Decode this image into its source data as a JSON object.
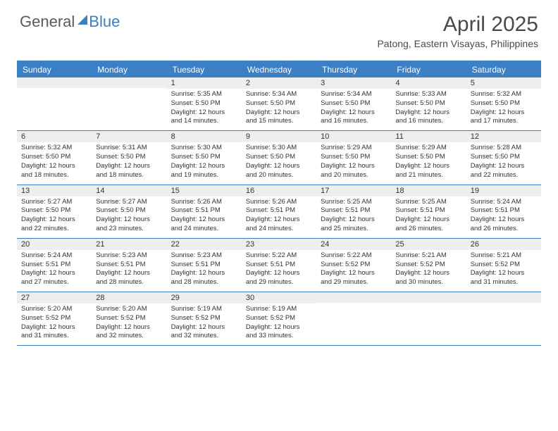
{
  "brand": {
    "part1": "General",
    "part2": "Blue"
  },
  "title": "April 2025",
  "location": "Patong, Eastern Visayas, Philippines",
  "colors": {
    "accent": "#3b7fc4",
    "header_text": "#4a4a4a",
    "daynum_bg": "#eeeeee",
    "text": "#333333",
    "white": "#ffffff"
  },
  "weekdays": [
    "Sunday",
    "Monday",
    "Tuesday",
    "Wednesday",
    "Thursday",
    "Friday",
    "Saturday"
  ],
  "weeks": [
    [
      {
        "n": "",
        "sr": "",
        "ss": "",
        "dl": ""
      },
      {
        "n": "",
        "sr": "",
        "ss": "",
        "dl": ""
      },
      {
        "n": "1",
        "sr": "5:35 AM",
        "ss": "5:50 PM",
        "dl": "12 hours and 14 minutes."
      },
      {
        "n": "2",
        "sr": "5:34 AM",
        "ss": "5:50 PM",
        "dl": "12 hours and 15 minutes."
      },
      {
        "n": "3",
        "sr": "5:34 AM",
        "ss": "5:50 PM",
        "dl": "12 hours and 16 minutes."
      },
      {
        "n": "4",
        "sr": "5:33 AM",
        "ss": "5:50 PM",
        "dl": "12 hours and 16 minutes."
      },
      {
        "n": "5",
        "sr": "5:32 AM",
        "ss": "5:50 PM",
        "dl": "12 hours and 17 minutes."
      }
    ],
    [
      {
        "n": "6",
        "sr": "5:32 AM",
        "ss": "5:50 PM",
        "dl": "12 hours and 18 minutes."
      },
      {
        "n": "7",
        "sr": "5:31 AM",
        "ss": "5:50 PM",
        "dl": "12 hours and 18 minutes."
      },
      {
        "n": "8",
        "sr": "5:30 AM",
        "ss": "5:50 PM",
        "dl": "12 hours and 19 minutes."
      },
      {
        "n": "9",
        "sr": "5:30 AM",
        "ss": "5:50 PM",
        "dl": "12 hours and 20 minutes."
      },
      {
        "n": "10",
        "sr": "5:29 AM",
        "ss": "5:50 PM",
        "dl": "12 hours and 20 minutes."
      },
      {
        "n": "11",
        "sr": "5:29 AM",
        "ss": "5:50 PM",
        "dl": "12 hours and 21 minutes."
      },
      {
        "n": "12",
        "sr": "5:28 AM",
        "ss": "5:50 PM",
        "dl": "12 hours and 22 minutes."
      }
    ],
    [
      {
        "n": "13",
        "sr": "5:27 AM",
        "ss": "5:50 PM",
        "dl": "12 hours and 22 minutes."
      },
      {
        "n": "14",
        "sr": "5:27 AM",
        "ss": "5:50 PM",
        "dl": "12 hours and 23 minutes."
      },
      {
        "n": "15",
        "sr": "5:26 AM",
        "ss": "5:51 PM",
        "dl": "12 hours and 24 minutes."
      },
      {
        "n": "16",
        "sr": "5:26 AM",
        "ss": "5:51 PM",
        "dl": "12 hours and 24 minutes."
      },
      {
        "n": "17",
        "sr": "5:25 AM",
        "ss": "5:51 PM",
        "dl": "12 hours and 25 minutes."
      },
      {
        "n": "18",
        "sr": "5:25 AM",
        "ss": "5:51 PM",
        "dl": "12 hours and 26 minutes."
      },
      {
        "n": "19",
        "sr": "5:24 AM",
        "ss": "5:51 PM",
        "dl": "12 hours and 26 minutes."
      }
    ],
    [
      {
        "n": "20",
        "sr": "5:24 AM",
        "ss": "5:51 PM",
        "dl": "12 hours and 27 minutes."
      },
      {
        "n": "21",
        "sr": "5:23 AM",
        "ss": "5:51 PM",
        "dl": "12 hours and 28 minutes."
      },
      {
        "n": "22",
        "sr": "5:23 AM",
        "ss": "5:51 PM",
        "dl": "12 hours and 28 minutes."
      },
      {
        "n": "23",
        "sr": "5:22 AM",
        "ss": "5:51 PM",
        "dl": "12 hours and 29 minutes."
      },
      {
        "n": "24",
        "sr": "5:22 AM",
        "ss": "5:52 PM",
        "dl": "12 hours and 29 minutes."
      },
      {
        "n": "25",
        "sr": "5:21 AM",
        "ss": "5:52 PM",
        "dl": "12 hours and 30 minutes."
      },
      {
        "n": "26",
        "sr": "5:21 AM",
        "ss": "5:52 PM",
        "dl": "12 hours and 31 minutes."
      }
    ],
    [
      {
        "n": "27",
        "sr": "5:20 AM",
        "ss": "5:52 PM",
        "dl": "12 hours and 31 minutes."
      },
      {
        "n": "28",
        "sr": "5:20 AM",
        "ss": "5:52 PM",
        "dl": "12 hours and 32 minutes."
      },
      {
        "n": "29",
        "sr": "5:19 AM",
        "ss": "5:52 PM",
        "dl": "12 hours and 32 minutes."
      },
      {
        "n": "30",
        "sr": "5:19 AM",
        "ss": "5:52 PM",
        "dl": "12 hours and 33 minutes."
      },
      {
        "n": "",
        "sr": "",
        "ss": "",
        "dl": ""
      },
      {
        "n": "",
        "sr": "",
        "ss": "",
        "dl": ""
      },
      {
        "n": "",
        "sr": "",
        "ss": "",
        "dl": ""
      }
    ]
  ],
  "labels": {
    "sunrise": "Sunrise: ",
    "sunset": "Sunset: ",
    "daylight": "Daylight: "
  }
}
